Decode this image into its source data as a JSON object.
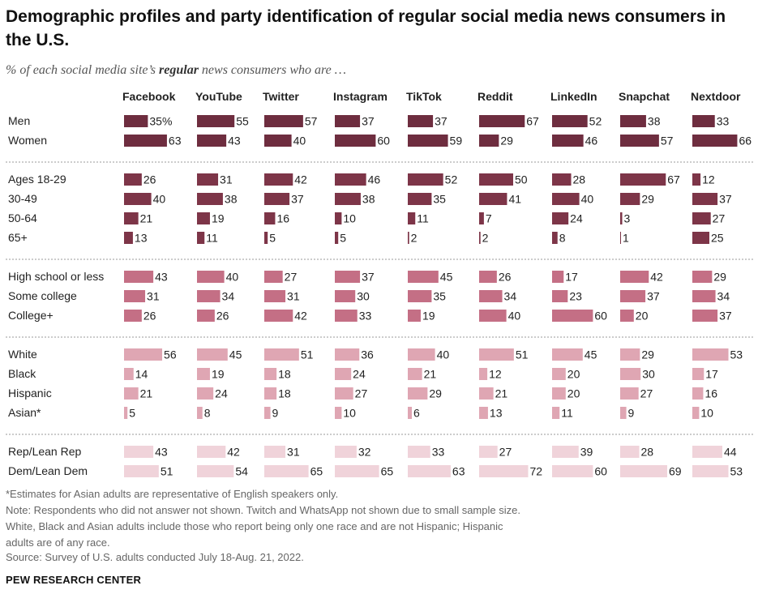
{
  "title": "Demographic profiles and party identification of regular social media news consumers in the U.S.",
  "subtitle_pre": "% of each social media site’s ",
  "subtitle_bold": "regular",
  "subtitle_post": " news consumers who are …",
  "notes": {
    "asterisk": "*Estimates for Asian adults are representative of English speakers only.",
    "note": "Note: Respondents who did not answer not shown. Twitch and WhatsApp not shown due to small sample size. White, Black and Asian adults include those who report being only one race and are not Hispanic; Hispanic adults are of any race.",
    "source": "Source: Survey of U.S. adults conducted July 18-Aug. 21, 2022."
  },
  "brand": "PEW RESEARCH CENTER",
  "chart_data": {
    "type": "bar",
    "orientation": "horizontal",
    "grid": false,
    "units": "%",
    "columns": [
      "Facebook",
      "YouTube",
      "Twitter",
      "Instagram",
      "TikTok",
      "Reddit",
      "LinkedIn",
      "Snapchat",
      "Nextdoor"
    ],
    "groups": [
      {
        "color": "#6e2d3f",
        "rows": [
          {
            "label": "Men",
            "values": [
              35,
              55,
              57,
              37,
              37,
              67,
              52,
              38,
              33
            ]
          },
          {
            "label": "Women",
            "values": [
              63,
              43,
              40,
              60,
              59,
              29,
              46,
              57,
              66
            ]
          }
        ]
      },
      {
        "color": "#7d3548",
        "rows": [
          {
            "label": "Ages 18-29",
            "values": [
              26,
              31,
              42,
              46,
              52,
              50,
              28,
              67,
              12
            ]
          },
          {
            "label": "30-49",
            "values": [
              40,
              38,
              37,
              38,
              35,
              41,
              40,
              29,
              37
            ]
          },
          {
            "label": "50-64",
            "values": [
              21,
              19,
              16,
              10,
              11,
              7,
              24,
              3,
              27
            ]
          },
          {
            "label": "65+",
            "values": [
              13,
              11,
              5,
              5,
              2,
              2,
              8,
              1,
              25
            ]
          }
        ]
      },
      {
        "color": "#c46f85",
        "rows": [
          {
            "label": "High school or less",
            "values": [
              43,
              40,
              27,
              37,
              45,
              26,
              17,
              42,
              29
            ]
          },
          {
            "label": "Some college",
            "values": [
              31,
              34,
              31,
              30,
              35,
              34,
              23,
              37,
              34
            ]
          },
          {
            "label": "College+",
            "values": [
              26,
              26,
              42,
              33,
              19,
              40,
              60,
              20,
              37
            ]
          }
        ]
      },
      {
        "color": "#dfa6b3",
        "rows": [
          {
            "label": "White",
            "values": [
              56,
              45,
              51,
              36,
              40,
              51,
              45,
              29,
              53
            ]
          },
          {
            "label": "Black",
            "values": [
              14,
              19,
              18,
              24,
              21,
              12,
              20,
              30,
              17
            ]
          },
          {
            "label": "Hispanic",
            "values": [
              21,
              24,
              18,
              27,
              29,
              21,
              20,
              27,
              16
            ]
          },
          {
            "label": "Asian*",
            "values": [
              5,
              8,
              9,
              10,
              6,
              13,
              11,
              9,
              10
            ]
          }
        ]
      },
      {
        "color": "#f0d3da",
        "rows": [
          {
            "label": "Rep/Lean Rep",
            "values": [
              43,
              42,
              31,
              32,
              33,
              27,
              39,
              28,
              44
            ]
          },
          {
            "label": "Dem/Lean Dem",
            "values": [
              51,
              54,
              65,
              65,
              63,
              72,
              60,
              69,
              53
            ]
          }
        ]
      }
    ],
    "first_value_suffix": "%"
  }
}
